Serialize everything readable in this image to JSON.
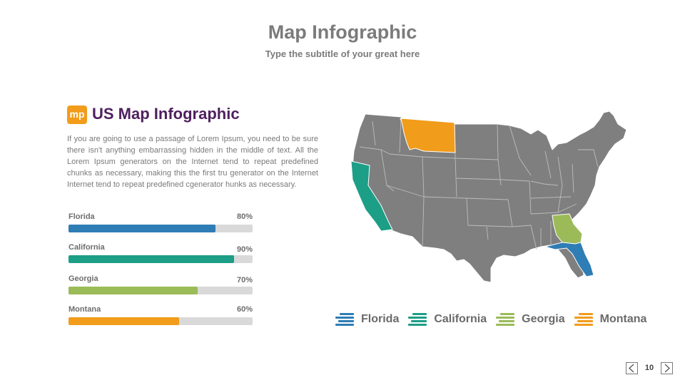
{
  "slide": {
    "title": "Map Infographic",
    "subtitle": "Type the subtitle of your great here",
    "page_number": "10"
  },
  "content": {
    "logo_text": "mp",
    "heading": "US Map Infographic",
    "body": "If you are going to use a passage of Lorem Ipsum, you need to be sure there isn't anything embarrassing hidden in the middle of text. All the Lorem Ipsum generators on the Internet tend to repeat predefined chunks as necessary, making this the first tru generator on the Internet Internet tend to repeat predefined cgenerator hunks as necessary."
  },
  "bars": [
    {
      "label": "Florida",
      "percent_label": "80%",
      "value": 80,
      "color": "#2e7db5"
    },
    {
      "label": "California",
      "percent_label": "90%",
      "value": 90,
      "color": "#1d9e86"
    },
    {
      "label": "Georgia",
      "percent_label": "70%",
      "value": 70,
      "color": "#9bbb59"
    },
    {
      "label": "Montana",
      "percent_label": "60%",
      "value": 60,
      "color": "#f19c1b"
    }
  ],
  "legend": [
    {
      "label": "Florida",
      "color": "#2e7db5",
      "icon": "stacked-lines-icon"
    },
    {
      "label": "California",
      "color": "#1d9e86",
      "icon": "stacked-lines-icon"
    },
    {
      "label": "Georgia",
      "color": "#9bbb59",
      "icon": "stacked-lines-icon"
    },
    {
      "label": "Montana",
      "color": "#f19c1b",
      "icon": "stacked-lines-icon"
    }
  ],
  "map": {
    "base_color": "#7f7f7f",
    "highlighted": [
      "Florida",
      "California",
      "Georgia",
      "Montana"
    ]
  },
  "nav": {
    "prev_icon": "chevron-left-icon",
    "next_icon": "chevron-right-icon"
  }
}
